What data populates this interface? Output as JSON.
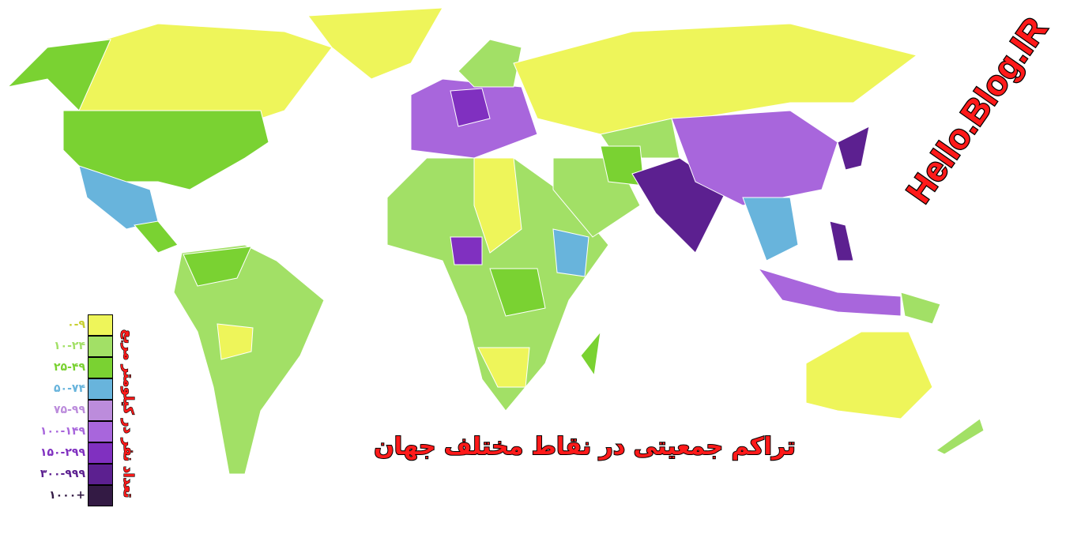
{
  "title": "تراکم جمعیتی در نقاط مختلف جهان",
  "watermark": "Hello.Blog.IR",
  "legend": {
    "title": "تعداد نفر در کیلومتر مربع",
    "items": [
      {
        "label": "۰-۹",
        "color": "#eef55a"
      },
      {
        "label": "۱۰-۲۴",
        "color": "#a2e066"
      },
      {
        "label": "۲۵-۴۹",
        "color": "#7ad232"
      },
      {
        "label": "۵۰-۷۴",
        "color": "#68b4dc"
      },
      {
        "label": "۷۵-۹۹",
        "color": "#bc8cdc"
      },
      {
        "label": "۱۰۰-۱۴۹",
        "color": "#a866dc"
      },
      {
        "label": "۱۵۰-۲۹۹",
        "color": "#8030c0"
      },
      {
        "label": "۳۰۰-۹۹۹",
        "color": "#5c2090"
      },
      {
        "label": "۱۰۰۰+",
        "color": "#331a44"
      }
    ]
  }
}
